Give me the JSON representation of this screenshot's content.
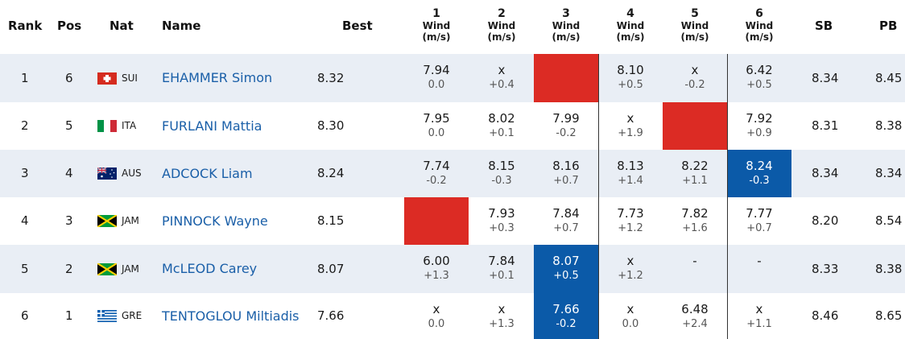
{
  "headers": {
    "rank": "Rank",
    "pos": "Pos",
    "nat": "Nat",
    "name": "Name",
    "best": "Best",
    "attempts": [
      {
        "num": "1",
        "wind": "Wind",
        "unit": "(m/s)"
      },
      {
        "num": "2",
        "wind": "Wind",
        "unit": "(m/s)"
      },
      {
        "num": "3",
        "wind": "Wind",
        "unit": "(m/s)"
      },
      {
        "num": "4",
        "wind": "Wind",
        "unit": "(m/s)"
      },
      {
        "num": "5",
        "wind": "Wind",
        "unit": "(m/s)"
      },
      {
        "num": "6",
        "wind": "Wind",
        "unit": "(m/s)"
      }
    ],
    "sb": "SB",
    "pb": "PB"
  },
  "colors": {
    "best_attempt": "#0b5aa8",
    "leader_marker": "#dc2b24",
    "name_link": "#1a5fa8",
    "row_band": "#e9eef5"
  },
  "rows": [
    {
      "rank": "1",
      "pos": "6",
      "nat": "SUI",
      "flag": "switzerland-flag-icon",
      "name": "EHAMMER Simon",
      "best": "8.32",
      "attempts": [
        {
          "mark": "7.94",
          "wind": "0.0",
          "state": "normal"
        },
        {
          "mark": "x",
          "wind": "+0.4",
          "state": "normal"
        },
        {
          "mark": "",
          "wind": "",
          "state": "lead"
        },
        {
          "mark": "8.10",
          "wind": "+0.5",
          "state": "normal"
        },
        {
          "mark": "x",
          "wind": "-0.2",
          "state": "normal"
        },
        {
          "mark": "6.42",
          "wind": "+0.5",
          "state": "normal"
        }
      ],
      "sb": "8.34",
      "pb": "8.45"
    },
    {
      "rank": "2",
      "pos": "5",
      "nat": "ITA",
      "flag": "italy-flag-icon",
      "name": "FURLANI Mattia",
      "best": "8.30",
      "attempts": [
        {
          "mark": "7.95",
          "wind": "0.0",
          "state": "normal"
        },
        {
          "mark": "8.02",
          "wind": "+0.1",
          "state": "normal"
        },
        {
          "mark": "7.99",
          "wind": "-0.2",
          "state": "normal"
        },
        {
          "mark": "x",
          "wind": "+1.9",
          "state": "normal"
        },
        {
          "mark": "",
          "wind": "",
          "state": "lead"
        },
        {
          "mark": "7.92",
          "wind": "+0.9",
          "state": "normal"
        }
      ],
      "sb": "8.31",
      "pb": "8.38"
    },
    {
      "rank": "3",
      "pos": "4",
      "nat": "AUS",
      "flag": "australia-flag-icon",
      "name": "ADCOCK Liam",
      "best": "8.24",
      "attempts": [
        {
          "mark": "7.74",
          "wind": "-0.2",
          "state": "normal"
        },
        {
          "mark": "8.15",
          "wind": "-0.3",
          "state": "normal"
        },
        {
          "mark": "8.16",
          "wind": "+0.7",
          "state": "normal"
        },
        {
          "mark": "8.13",
          "wind": "+1.4",
          "state": "normal"
        },
        {
          "mark": "8.22",
          "wind": "+1.1",
          "state": "normal"
        },
        {
          "mark": "8.24",
          "wind": "-0.3",
          "state": "best"
        }
      ],
      "sb": "8.34",
      "pb": "8.34"
    },
    {
      "rank": "4",
      "pos": "3",
      "nat": "JAM",
      "flag": "jamaica-flag-icon",
      "name": "PINNOCK Wayne",
      "best": "8.15",
      "attempts": [
        {
          "mark": "",
          "wind": "",
          "state": "lead"
        },
        {
          "mark": "7.93",
          "wind": "+0.3",
          "state": "normal"
        },
        {
          "mark": "7.84",
          "wind": "+0.7",
          "state": "normal"
        },
        {
          "mark": "7.73",
          "wind": "+1.2",
          "state": "normal"
        },
        {
          "mark": "7.82",
          "wind": "+1.6",
          "state": "normal"
        },
        {
          "mark": "7.77",
          "wind": "+0.7",
          "state": "normal"
        }
      ],
      "sb": "8.20",
      "pb": "8.54"
    },
    {
      "rank": "5",
      "pos": "2",
      "nat": "JAM",
      "flag": "jamaica-flag-icon",
      "name": "McLEOD Carey",
      "best": "8.07",
      "attempts": [
        {
          "mark": "6.00",
          "wind": "+1.3",
          "state": "normal"
        },
        {
          "mark": "7.84",
          "wind": "+0.1",
          "state": "normal"
        },
        {
          "mark": "8.07",
          "wind": "+0.5",
          "state": "best"
        },
        {
          "mark": "x",
          "wind": "+1.2",
          "state": "normal"
        },
        {
          "mark": "-",
          "wind": "",
          "state": "normal"
        },
        {
          "mark": "-",
          "wind": "",
          "state": "normal"
        }
      ],
      "sb": "8.33",
      "pb": "8.38"
    },
    {
      "rank": "6",
      "pos": "1",
      "nat": "GRE",
      "flag": "greece-flag-icon",
      "name": "TENTOGLOU Miltiadis",
      "best": "7.66",
      "attempts": [
        {
          "mark": "x",
          "wind": "0.0",
          "state": "normal"
        },
        {
          "mark": "x",
          "wind": "+1.3",
          "state": "normal"
        },
        {
          "mark": "7.66",
          "wind": "-0.2",
          "state": "best"
        },
        {
          "mark": "x",
          "wind": "0.0",
          "state": "normal"
        },
        {
          "mark": "6.48",
          "wind": "+2.4",
          "state": "normal"
        },
        {
          "mark": "x",
          "wind": "+1.1",
          "state": "normal"
        }
      ],
      "sb": "8.46",
      "pb": "8.65"
    }
  ]
}
